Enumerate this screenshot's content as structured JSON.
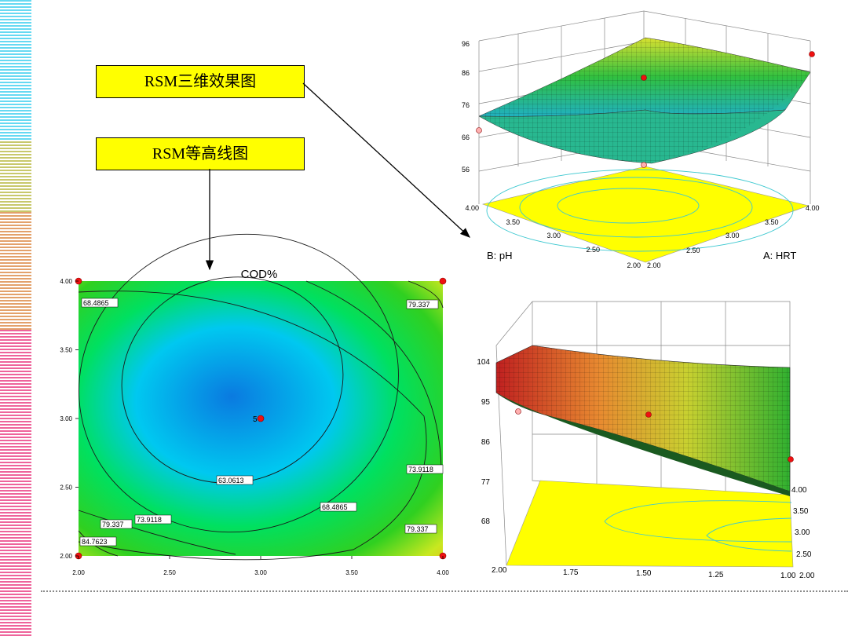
{
  "callouts": {
    "surface_label": "RSM三维效果图",
    "contour_label": "RSM等高线图"
  },
  "colors": {
    "callout_bg": "#ffff00",
    "arrow": "#000000",
    "deco_blue": "#33ccee",
    "deco_olive": "#b5b53a",
    "deco_orange": "#d9823a",
    "deco_pink": "#e8307a"
  },
  "chart_data": [
    {
      "type": "contour",
      "title": "COD%",
      "x_ticks": [
        "2.00",
        "2.50",
        "3.00",
        "3.50",
        "4.00"
      ],
      "y_ticks": [
        "2.00",
        "2.50",
        "3.00",
        "3.50",
        "4.00"
      ],
      "xlim": [
        2,
        4
      ],
      "ylim": [
        2,
        4
      ],
      "center_point": {
        "x": 3.0,
        "y": 3.0,
        "label": "5"
      },
      "corner_points": [
        [
          2,
          2
        ],
        [
          4,
          2
        ],
        [
          2,
          4
        ],
        [
          4,
          4
        ]
      ],
      "contour_labels": [
        "68.4865",
        "79.337",
        "63.0613",
        "73.9118",
        "68.4865",
        "79.337",
        "73.9118",
        "79.337",
        "84.7623"
      ],
      "color_scale": [
        "#0a7ae0",
        "#00ccee",
        "#00dd30",
        "#c8e820",
        "#ffa010"
      ]
    },
    {
      "type": "surface3d",
      "z_ticks": [
        "96",
        "86",
        "76",
        "66",
        "56"
      ],
      "y_ticks": [
        "4.00",
        "3.50",
        "3.00",
        "2.50",
        "2.00"
      ],
      "x_ticks": [
        "2.00",
        "2.50",
        "3.00",
        "3.50",
        "4.00"
      ],
      "y_label": "B: pH",
      "x_label": "A: HRT"
    },
    {
      "type": "surface3d",
      "z_ticks": [
        "104",
        "95",
        "86",
        "77",
        "68"
      ],
      "x_ticks": [
        "2.00",
        "1.75",
        "1.50",
        "1.25",
        "1.00"
      ],
      "y_ticks": [
        "2.00",
        "2.50",
        "3.00",
        "3.50",
        "4.00"
      ]
    }
  ]
}
